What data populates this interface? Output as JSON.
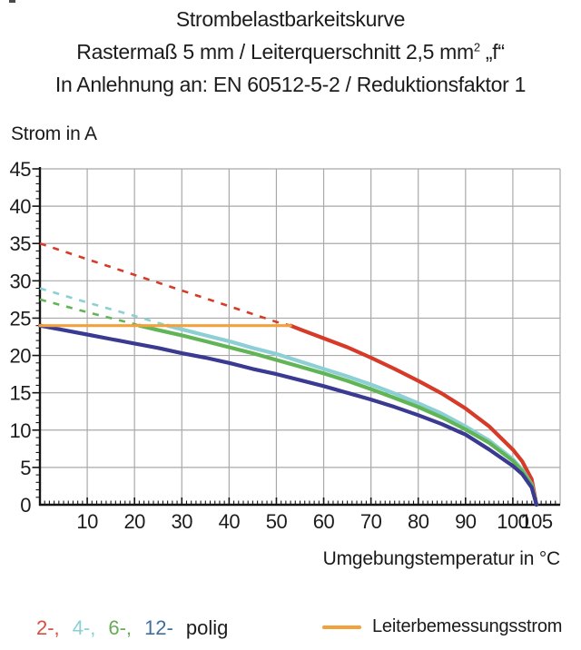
{
  "title": {
    "line1": "Strombelastbarkeitskurve",
    "line2_pre": "Rastermaß 5 mm / Leiterquerschnitt 2,5 mm",
    "line2_sup": "2",
    "line2_post": " „f“",
    "line3": "In Anlehnung an: EN 60512-5-2 / Reduktionsfaktor 1"
  },
  "axes": {
    "y_label": "Strom in A",
    "x_label": "Umgebungstemperatur in °C",
    "y_tick_labels": [
      0,
      5,
      10,
      15,
      20,
      25,
      30,
      35,
      40,
      45
    ],
    "x_tick_labels": [
      10,
      20,
      30,
      40,
      50,
      60,
      70,
      80,
      90,
      100,
      105
    ]
  },
  "legend": {
    "pole_items": [
      {
        "label": "2-,",
        "color": "#d5503f"
      },
      {
        "label": "4-,",
        "color": "#8ccfd4"
      },
      {
        "label": "6-,",
        "color": "#66ab57"
      },
      {
        "label": "12-",
        "color": "#3e6f9e"
      }
    ],
    "pole_suffix": "polig",
    "rated_label": "Leiterbemessungsstrom",
    "rated_color": "#f2a13c"
  },
  "colors": {
    "grid": "#a9a9a9",
    "axis": "#141414",
    "text": "#1c1c1c",
    "red_2pole": "#d63b2a",
    "cyan_4pole": "#8ccfd4",
    "green_6pole": "#62b557",
    "blue_12pole": "#3a3a93",
    "orange_rated": "#f2a13c"
  },
  "chart_data": {
    "type": "line",
    "title": "Strombelastbarkeitskurve",
    "subtitle": "Rastermaß 5 mm / Leiterquerschnitt 2,5 mm² „f“ / In Anlehnung an: EN 60512-5-2 / Reduktionsfaktor 1",
    "xlabel": "Umgebungstemperatur in °C",
    "ylabel": "Strom in A",
    "xlim": [
      0,
      110
    ],
    "ylim": [
      0,
      45
    ],
    "grid": true,
    "x_gridline_step": 10,
    "y_gridline_step": 5,
    "x_major_ticks": [
      10,
      20,
      30,
      40,
      50,
      60,
      70,
      80,
      90,
      100,
      105
    ],
    "y_major_ticks": [
      0,
      5,
      10,
      15,
      20,
      25,
      30,
      35,
      40,
      45
    ],
    "rated_current_A": 24,
    "note": "dashed_points = derating curve above rated conductor current (shown dashed); solid_points = effective curve",
    "series": [
      {
        "name": "2-polig",
        "color": "#d63b2a",
        "dashed_points": [
          [
            0,
            35
          ],
          [
            10,
            32.9
          ],
          [
            20,
            30.8
          ],
          [
            30,
            28.7
          ],
          [
            40,
            26.6
          ],
          [
            50,
            24.5
          ],
          [
            53,
            24
          ]
        ],
        "solid_points": [
          [
            53,
            24
          ],
          [
            55,
            23.5
          ],
          [
            60,
            22.3
          ],
          [
            65,
            21.1
          ],
          [
            70,
            19.7
          ],
          [
            75,
            18.2
          ],
          [
            80,
            16.6
          ],
          [
            85,
            14.9
          ],
          [
            90,
            12.9
          ],
          [
            95,
            10.5
          ],
          [
            100,
            7.4
          ],
          [
            102,
            5.8
          ],
          [
            104,
            3.4
          ],
          [
            105,
            0
          ]
        ]
      },
      {
        "name": "4-polig",
        "color": "#8ccfd4",
        "dashed_points": [
          [
            0,
            29
          ],
          [
            10,
            27.1
          ],
          [
            20,
            25.3
          ],
          [
            27,
            24
          ]
        ],
        "solid_points": [
          [
            27,
            24
          ],
          [
            30,
            23.5
          ],
          [
            35,
            22.7
          ],
          [
            40,
            21.9
          ],
          [
            45,
            21.0
          ],
          [
            50,
            20.2
          ],
          [
            55,
            19.2
          ],
          [
            60,
            18.2
          ],
          [
            65,
            17.2
          ],
          [
            70,
            16.1
          ],
          [
            75,
            14.9
          ],
          [
            80,
            13.6
          ],
          [
            85,
            12.2
          ],
          [
            90,
            10.5
          ],
          [
            95,
            8.6
          ],
          [
            100,
            6.1
          ],
          [
            102,
            4.7
          ],
          [
            104,
            2.7
          ],
          [
            105,
            0
          ]
        ]
      },
      {
        "name": "6-polig",
        "color": "#62b557",
        "dashed_points": [
          [
            0,
            27.5
          ],
          [
            10,
            25.8
          ],
          [
            20,
            24.2
          ],
          [
            21,
            24
          ]
        ],
        "solid_points": [
          [
            21,
            24
          ],
          [
            25,
            23.4
          ],
          [
            30,
            22.7
          ],
          [
            35,
            21.9
          ],
          [
            40,
            21.1
          ],
          [
            45,
            20.3
          ],
          [
            50,
            19.4
          ],
          [
            55,
            18.5
          ],
          [
            60,
            17.6
          ],
          [
            65,
            16.6
          ],
          [
            70,
            15.5
          ],
          [
            75,
            14.3
          ],
          [
            80,
            13.1
          ],
          [
            85,
            11.7
          ],
          [
            90,
            10.1
          ],
          [
            95,
            8.3
          ],
          [
            100,
            5.9
          ],
          [
            102,
            4.5
          ],
          [
            104,
            2.6
          ],
          [
            105,
            0
          ]
        ]
      },
      {
        "name": "12-polig",
        "color": "#3a3a93",
        "dashed_points": [],
        "solid_points": [
          [
            0,
            24
          ],
          [
            5,
            23.4
          ],
          [
            10,
            22.8
          ],
          [
            15,
            22.2
          ],
          [
            20,
            21.6
          ],
          [
            25,
            21.0
          ],
          [
            30,
            20.3
          ],
          [
            35,
            19.7
          ],
          [
            40,
            19.0
          ],
          [
            45,
            18.2
          ],
          [
            50,
            17.5
          ],
          [
            55,
            16.7
          ],
          [
            60,
            15.9
          ],
          [
            65,
            15.0
          ],
          [
            70,
            14.1
          ],
          [
            75,
            13.1
          ],
          [
            80,
            12.0
          ],
          [
            85,
            10.8
          ],
          [
            90,
            9.4
          ],
          [
            95,
            7.4
          ],
          [
            100,
            5.2
          ],
          [
            102,
            4.1
          ],
          [
            104,
            2.3
          ],
          [
            105,
            0
          ]
        ]
      },
      {
        "name": "Leiterbemessungsstrom",
        "color": "#f2a13c",
        "dashed_points": [],
        "solid_points": [
          [
            0,
            24
          ],
          [
            53,
            24
          ]
        ],
        "width": 3.2
      }
    ]
  }
}
